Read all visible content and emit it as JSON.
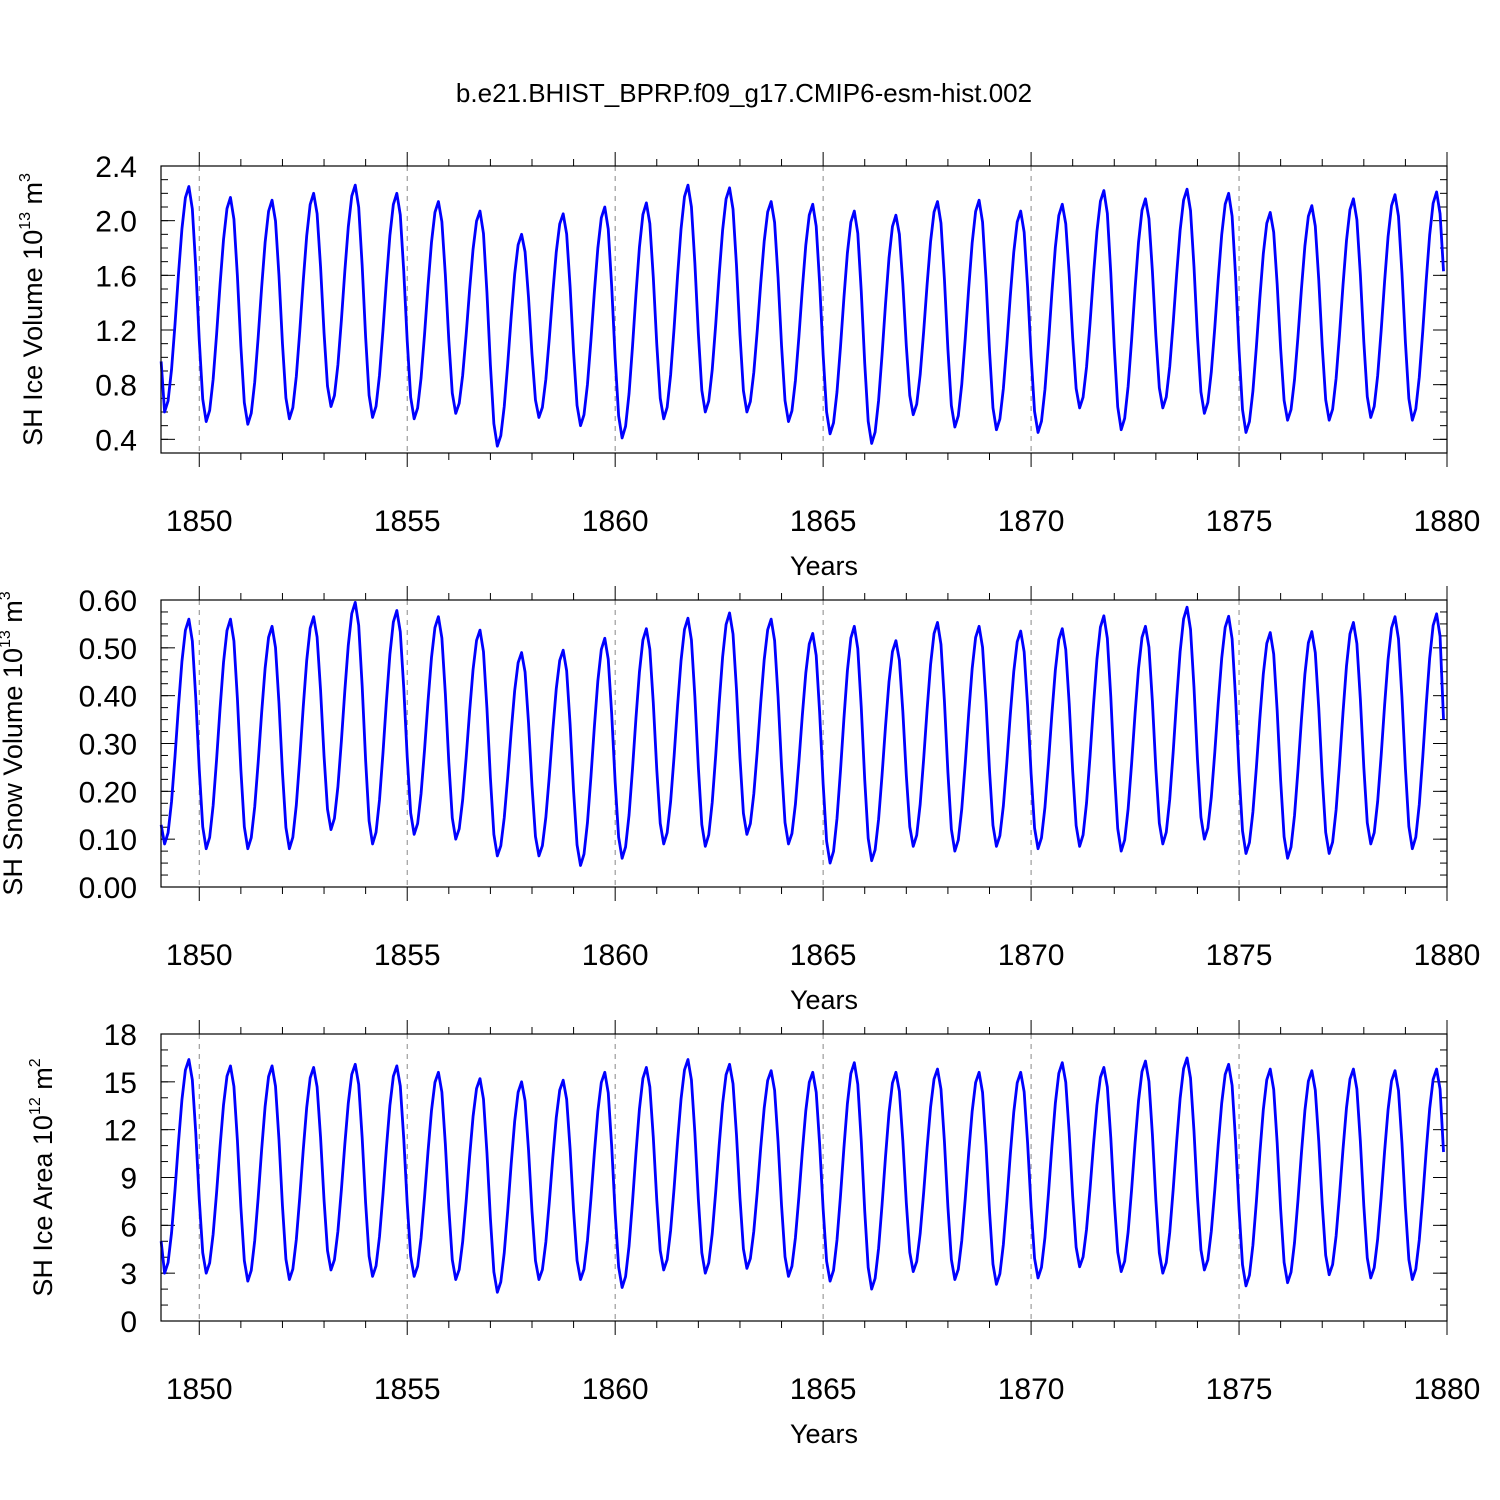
{
  "title": "b.e21.BHIST_BPRP.f09_g17.CMIP6-esm-hist.002",
  "series_color": "#0000ff",
  "chart_data": [
    {
      "id": "ice-volume",
      "type": "line",
      "title": "",
      "xlabel": "Years",
      "ylabel": "SH Ice Volume 10",
      "ylabel_exp": "13",
      "ylabel_unit": " m",
      "ylabel_unit_exp": "3",
      "xlim": [
        1849.08,
        1880.0
      ],
      "ylim": [
        0.3,
        2.4
      ],
      "xticks": [
        1850,
        1855,
        1860,
        1865,
        1870,
        1875,
        1880
      ],
      "xtick_labels": [
        "1850",
        "1855",
        "1860",
        "1865",
        "1870",
        "1875",
        "1880"
      ],
      "yticks": [
        0.4,
        0.8,
        1.2,
        1.6,
        2.0,
        2.4
      ],
      "ytick_labels": [
        "0.4",
        "0.8",
        "1.2",
        "1.6",
        "2.0",
        "2.4"
      ],
      "ytick_minor_step": 0.1,
      "x_start": 1849.0833,
      "x_step": 0.0833333,
      "start_value": 0.97,
      "start_min": 0.6,
      "annual_mins": [
        0.53,
        0.51,
        0.55,
        0.64,
        0.56,
        0.55,
        0.59,
        0.35,
        0.56,
        0.5,
        0.41,
        0.55,
        0.6,
        0.6,
        0.53,
        0.44,
        0.37,
        0.58,
        0.49,
        0.47,
        0.45,
        0.63,
        0.47,
        0.63,
        0.59,
        0.45,
        0.54,
        0.54,
        0.56,
        0.54
      ],
      "annual_maxs": [
        2.25,
        2.17,
        2.15,
        2.2,
        2.26,
        2.2,
        2.14,
        2.07,
        1.9,
        2.05,
        2.1,
        2.13,
        2.26,
        2.24,
        2.14,
        2.12,
        2.07,
        2.04,
        2.14,
        2.15,
        2.07,
        2.12,
        2.22,
        2.16,
        2.23,
        2.2,
        2.06,
        2.11,
        2.16,
        2.19,
        2.21
      ],
      "end_value": 1.63
    },
    {
      "id": "snow-volume",
      "type": "line",
      "title": "",
      "xlabel": "Years",
      "ylabel": "SH Snow Volume 10",
      "ylabel_exp": "13",
      "ylabel_unit": " m",
      "ylabel_unit_exp": "3",
      "xlim": [
        1849.08,
        1880.0
      ],
      "ylim": [
        0.0,
        0.6
      ],
      "xticks": [
        1850,
        1855,
        1860,
        1865,
        1870,
        1875,
        1880
      ],
      "xtick_labels": [
        "1850",
        "1855",
        "1860",
        "1865",
        "1870",
        "1875",
        "1880"
      ],
      "yticks": [
        0.0,
        0.1,
        0.2,
        0.3,
        0.4,
        0.5,
        0.6
      ],
      "ytick_labels": [
        "0.00",
        "0.10",
        "0.20",
        "0.30",
        "0.40",
        "0.50",
        "0.60"
      ],
      "ytick_minor_step": 0.025,
      "x_start": 1849.0833,
      "x_step": 0.0833333,
      "start_value": 0.13,
      "start_min": 0.09,
      "annual_mins": [
        0.08,
        0.08,
        0.08,
        0.12,
        0.09,
        0.11,
        0.1,
        0.065,
        0.065,
        0.045,
        0.06,
        0.09,
        0.085,
        0.11,
        0.09,
        0.05,
        0.055,
        0.085,
        0.075,
        0.085,
        0.08,
        0.085,
        0.075,
        0.09,
        0.1,
        0.07,
        0.06,
        0.07,
        0.09,
        0.08
      ],
      "annual_maxs": [
        0.56,
        0.56,
        0.545,
        0.565,
        0.595,
        0.578,
        0.565,
        0.537,
        0.49,
        0.495,
        0.52,
        0.54,
        0.562,
        0.573,
        0.56,
        0.53,
        0.545,
        0.515,
        0.553,
        0.545,
        0.535,
        0.54,
        0.567,
        0.545,
        0.585,
        0.566,
        0.532,
        0.534,
        0.553,
        0.565,
        0.571
      ],
      "end_value": 0.35
    },
    {
      "id": "ice-area",
      "type": "line",
      "title": "",
      "xlabel": "Years",
      "ylabel": "SH Ice Area 10",
      "ylabel_exp": "12",
      "ylabel_unit": " m",
      "ylabel_unit_exp": "2",
      "xlim": [
        1849.08,
        1880.0
      ],
      "ylim": [
        0,
        18
      ],
      "xticks": [
        1850,
        1855,
        1860,
        1865,
        1870,
        1875,
        1880
      ],
      "xtick_labels": [
        "1850",
        "1855",
        "1860",
        "1865",
        "1870",
        "1875",
        "1880"
      ],
      "yticks": [
        0,
        3,
        6,
        9,
        12,
        15,
        18
      ],
      "ytick_labels": [
        "0",
        "3",
        "6",
        "9",
        "12",
        "15",
        "18"
      ],
      "ytick_minor_step": 1,
      "x_start": 1849.0833,
      "x_step": 0.0833333,
      "start_value": 5.0,
      "start_min": 3.0,
      "annual_mins": [
        3.0,
        2.5,
        2.6,
        3.2,
        2.8,
        2.8,
        2.6,
        1.8,
        2.6,
        2.6,
        2.1,
        3.2,
        3.0,
        3.3,
        2.8,
        2.5,
        2.0,
        3.1,
        2.6,
        2.3,
        2.7,
        3.4,
        3.1,
        3.0,
        3.2,
        2.2,
        2.4,
        2.9,
        2.7,
        2.6
      ],
      "annual_maxs": [
        16.4,
        16.0,
        16.0,
        15.9,
        16.1,
        16.0,
        15.6,
        15.2,
        15.0,
        15.1,
        15.6,
        15.9,
        16.4,
        16.1,
        15.7,
        15.6,
        16.2,
        15.6,
        15.8,
        15.6,
        15.6,
        16.2,
        15.9,
        16.3,
        16.5,
        16.1,
        15.8,
        15.7,
        15.8,
        15.7,
        15.8
      ],
      "end_value": 10.6
    }
  ]
}
